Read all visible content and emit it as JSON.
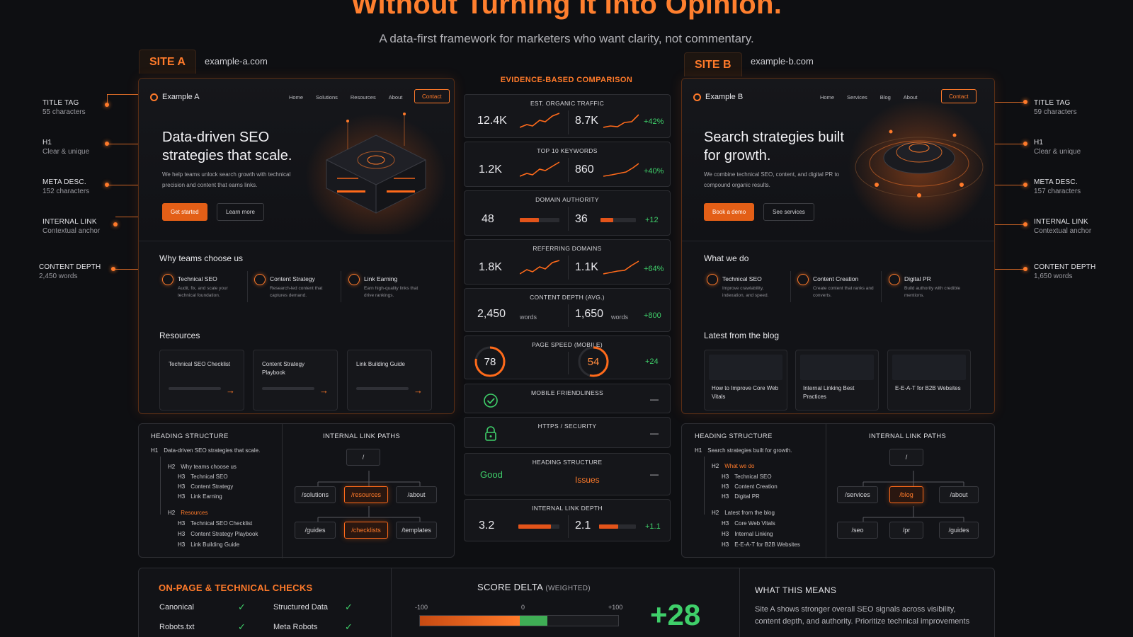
{
  "header": {
    "title": "Without Turning It Into Opinion.",
    "subtitle": "A data-first framework for marketers who want clarity, not commentary."
  },
  "site_a": {
    "tag": "SITE A",
    "url": "example-a.com",
    "brand": "Example A",
    "nav": [
      "Home",
      "Solutions",
      "Resources",
      "About"
    ],
    "contact": "Contact",
    "h1": "Data-driven SEO strategies that scale.",
    "intro": "We help teams unlock search growth with technical precision and content that earns links.",
    "cta_primary": "Get started",
    "cta_secondary": "Learn more",
    "why_title": "Why teams choose us",
    "features": [
      {
        "title": "Technical SEO",
        "desc": "Audit, fix, and scale your technical foundation."
      },
      {
        "title": "Content Strategy",
        "desc": "Research-led content that captures demand."
      },
      {
        "title": "Link Earning",
        "desc": "Earn high-quality links that drive rankings."
      }
    ],
    "resources_title": "Resources",
    "resources": [
      "Technical SEO Checklist",
      "Content Strategy Playbook",
      "Link Building Guide"
    ],
    "heading_structure": {
      "title": "HEADING STRUCTURE",
      "rows": [
        {
          "tag": "H1",
          "text": "Data-driven SEO strategies that scale."
        },
        {
          "tag": "H2",
          "text": "Why teams choose us"
        },
        {
          "tag": "H3",
          "text": "Technical SEO"
        },
        {
          "tag": "H3",
          "text": "Content Strategy"
        },
        {
          "tag": "H3",
          "text": "Link Earning"
        },
        {
          "tag": "H2",
          "text": "Resources"
        },
        {
          "tag": "H3",
          "text": "Technical SEO Checklist"
        },
        {
          "tag": "H3",
          "text": "Content Strategy Playbook"
        },
        {
          "tag": "H3",
          "text": "Link Building Guide"
        }
      ]
    },
    "link_paths": {
      "title": "INTERNAL LINK PATHS",
      "root": "/",
      "level1": [
        "/solutions",
        "/resources",
        "/about"
      ],
      "level2": [
        "/guides",
        "/checklists",
        "/templates"
      ]
    }
  },
  "site_b": {
    "tag": "SITE B",
    "url": "example-b.com",
    "brand": "Example B",
    "nav": [
      "Home",
      "Services",
      "Blog",
      "About"
    ],
    "contact": "Contact",
    "h1": "Search strategies built for growth.",
    "intro": "We combine technical SEO, content, and digital PR to compound organic results.",
    "cta_primary": "Book a demo",
    "cta_secondary": "See services",
    "why_title": "What we do",
    "features": [
      {
        "title": "Technical SEO",
        "desc": "Improve crawlability, indexation, and speed."
      },
      {
        "title": "Content Creation",
        "desc": "Create content that ranks and converts."
      },
      {
        "title": "Digital PR",
        "desc": "Build authority with credible mentions."
      }
    ],
    "blog_title": "Latest from the blog",
    "blog": [
      "How to Improve Core Web Vitals",
      "Internal Linking Best Practices",
      "E-E-A-T for B2B Websites"
    ],
    "heading_structure": {
      "title": "HEADING STRUCTURE",
      "rows": [
        {
          "tag": "H1",
          "text": "Search strategies built for growth."
        },
        {
          "tag": "H2",
          "text": "What we do"
        },
        {
          "tag": "H3",
          "text": "Technical SEO"
        },
        {
          "tag": "H3",
          "text": "Content Creation"
        },
        {
          "tag": "H3",
          "text": "Digital PR"
        },
        {
          "tag": "H2",
          "text": "Latest from the blog"
        },
        {
          "tag": "H3",
          "text": "Core Web Vitals"
        },
        {
          "tag": "H3",
          "text": "Internal Linking"
        },
        {
          "tag": "H3",
          "text": "E-E-A-T for B2B Websites"
        }
      ]
    },
    "link_paths": {
      "title": "INTERNAL LINK PATHS",
      "root": "/",
      "level1": [
        "/services",
        "/blog",
        "/about"
      ],
      "level2": [
        "/seo",
        "/pr",
        "/guides"
      ]
    }
  },
  "annotations_left": [
    {
      "label": "TITLE TAG",
      "detail": "55 characters"
    },
    {
      "label": "H1",
      "detail": "Clear & unique"
    },
    {
      "label": "META DESC.",
      "detail": "152 characters"
    },
    {
      "label": "INTERNAL LINK",
      "detail": "Contextual anchor"
    },
    {
      "label": "CONTENT DEPTH",
      "detail": "2,450 words"
    }
  ],
  "annotations_right": [
    {
      "label": "TITLE TAG",
      "detail": "59 characters"
    },
    {
      "label": "H1",
      "detail": "Clear & unique"
    },
    {
      "label": "META DESC.",
      "detail": "157 characters"
    },
    {
      "label": "INTERNAL LINK",
      "detail": "Contextual anchor"
    },
    {
      "label": "CONTENT DEPTH",
      "detail": "1,650 words"
    }
  ],
  "comparison": {
    "title": "EVIDENCE-BASED COMPARISON",
    "metrics": [
      {
        "title": "EST. ORGANIC TRAFFIC",
        "a": "12.4K",
        "b": "8.7K",
        "delta": "+42%"
      },
      {
        "title": "TOP 10 KEYWORDS",
        "a": "1.2K",
        "b": "860",
        "delta": "+40%"
      },
      {
        "title": "DOMAIN AUTHORITY",
        "a": "48",
        "b": "36",
        "delta": "+12",
        "a_level": 48,
        "b_level": 36
      },
      {
        "title": "REFERRING DOMAINS",
        "a": "1.8K",
        "b": "1.1K",
        "delta": "+64%"
      },
      {
        "title": "CONTENT DEPTH (AVG.)",
        "a": "2,450",
        "b": "1,650",
        "unit": "words",
        "delta": "+800"
      },
      {
        "title": "PAGE SPEED (MOBILE)",
        "a": "78",
        "b": "54",
        "delta": "+24",
        "a_score": 78,
        "b_score": 54
      },
      {
        "title": "MOBILE FRIENDLINESS",
        "delta": "—"
      },
      {
        "title": "HTTPS / SECURITY",
        "delta": "—"
      },
      {
        "title": "HEADING STRUCTURE",
        "a": "Good",
        "b": "Issues",
        "delta": "—"
      },
      {
        "title": "INTERNAL LINK DEPTH",
        "a": "3.2",
        "b": "2.1",
        "delta": "+1.1",
        "a_level": 80,
        "b_level": 52
      }
    ]
  },
  "checks": {
    "title": "ON-PAGE & TECHNICAL CHECKS",
    "items": [
      "Canonical",
      "Structured Data",
      "Robots.txt",
      "Meta Robots"
    ]
  },
  "score_delta": {
    "title": "SCORE DELTA",
    "qualifier": "(WEIGHTED)",
    "min_label": "-100",
    "mid_label": "0",
    "max_label": "+100",
    "value": "+28",
    "value_num": 28
  },
  "meaning": {
    "title": "WHAT THIS MEANS",
    "text": "Site A shows stronger overall SEO signals across visibility, content depth, and authority. Prioritize technical improvements"
  },
  "colors": {
    "accent": "#ff7a2a",
    "positive": "#3fcf6a"
  }
}
